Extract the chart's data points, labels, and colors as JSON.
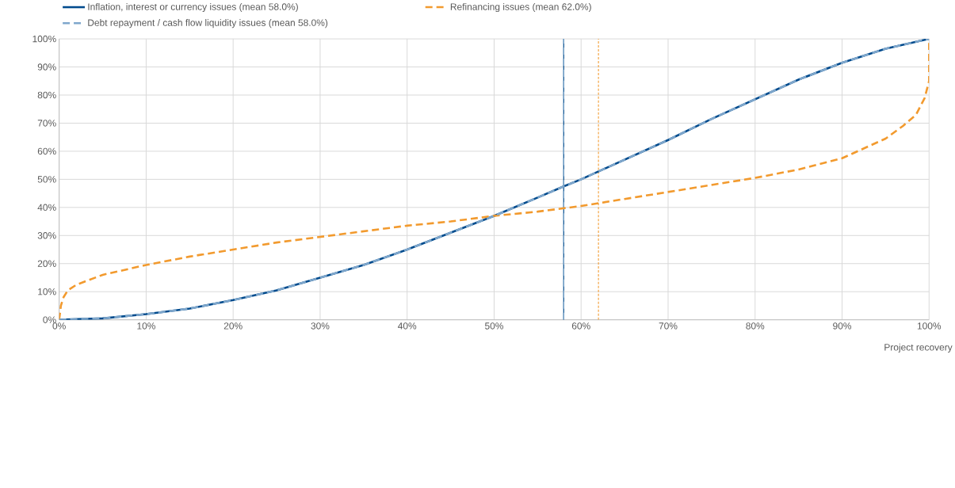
{
  "chart_data": {
    "type": "line",
    "xlabel": "Project recovery",
    "xlim": [
      0,
      100
    ],
    "ylim": [
      0,
      100
    ],
    "xticks": [
      {
        "value": 0,
        "label": "0%"
      },
      {
        "value": 10,
        "label": "10%"
      },
      {
        "value": 20,
        "label": "20%"
      },
      {
        "value": 30,
        "label": "30%"
      },
      {
        "value": 40,
        "label": "40%"
      },
      {
        "value": 50,
        "label": "50%"
      },
      {
        "value": 60,
        "label": "60%"
      },
      {
        "value": 70,
        "label": "70%"
      },
      {
        "value": 80,
        "label": "80%"
      },
      {
        "value": 90,
        "label": "90%"
      },
      {
        "value": 100,
        "label": "100%"
      }
    ],
    "yticks": [
      {
        "value": 0,
        "label": "0%"
      },
      {
        "value": 10,
        "label": "10%"
      },
      {
        "value": 20,
        "label": "20%"
      },
      {
        "value": 30,
        "label": "30%"
      },
      {
        "value": 40,
        "label": "40%"
      },
      {
        "value": 50,
        "label": "50%"
      },
      {
        "value": 60,
        "label": "60%"
      },
      {
        "value": 70,
        "label": "70%"
      },
      {
        "value": 80,
        "label": "80%"
      },
      {
        "value": 90,
        "label": "90%"
      },
      {
        "value": 100,
        "label": "100%"
      }
    ],
    "grid": true,
    "legend": "top",
    "marker": "none",
    "series": [
      {
        "name": "Inflation, interest or currency issues (mean 58.0%)",
        "color": "#004b8d",
        "line_style": "solid",
        "x": [
          0,
          5,
          10,
          15,
          20,
          25,
          30,
          35,
          40,
          45,
          50,
          55,
          58,
          60,
          65,
          70,
          75,
          80,
          85,
          90,
          95,
          100
        ],
        "values": [
          0,
          0.5,
          2,
          4,
          7,
          10.5,
          15,
          19.5,
          25,
          31,
          37,
          43.5,
          47.5,
          50,
          57,
          64,
          71.5,
          78.5,
          85.5,
          91.5,
          96.5,
          100
        ]
      },
      {
        "name": "Refinancing issues  (mean 62.0%)",
        "color": "#f29a2e",
        "line_style": "dashed",
        "x": [
          0,
          0.2,
          0.5,
          1,
          2,
          5,
          10,
          15,
          20,
          25,
          30,
          35,
          40,
          45,
          50,
          55,
          60,
          62,
          65,
          70,
          75,
          80,
          85,
          90,
          95,
          97,
          98.5,
          99.5,
          100,
          100
        ],
        "values": [
          0,
          5,
          8,
          10.5,
          12.5,
          16,
          19.5,
          22.5,
          25,
          27.5,
          29.5,
          31.5,
          33.5,
          35,
          37,
          38.5,
          40.5,
          41.5,
          43,
          45.5,
          48,
          50.5,
          53.5,
          57.5,
          64.5,
          69,
          73,
          79,
          85,
          100
        ]
      },
      {
        "name": "Debt repayment / cash flow liquidity issues (mean 58.0%)",
        "color": "#7fa7cc",
        "line_style": "dashed",
        "x": [
          0,
          5,
          10,
          15,
          20,
          25,
          30,
          35,
          40,
          45,
          50,
          55,
          58,
          60,
          65,
          70,
          75,
          80,
          85,
          90,
          95,
          100
        ],
        "values": [
          0,
          0.5,
          2,
          4,
          7,
          10.5,
          15,
          19.5,
          25,
          31,
          37,
          43.5,
          47.5,
          50,
          57,
          64,
          71.5,
          78.5,
          85.5,
          91.5,
          96.5,
          100
        ]
      }
    ],
    "ref_lines": [
      {
        "axis": "x",
        "value": 58,
        "color": "#004b8d",
        "line_style": "solid"
      },
      {
        "axis": "x",
        "value": 58,
        "color": "#7fa7cc",
        "line_style": "dashed"
      },
      {
        "axis": "x",
        "value": 62,
        "color": "#f29a2e",
        "line_style": "dotted"
      }
    ]
  }
}
